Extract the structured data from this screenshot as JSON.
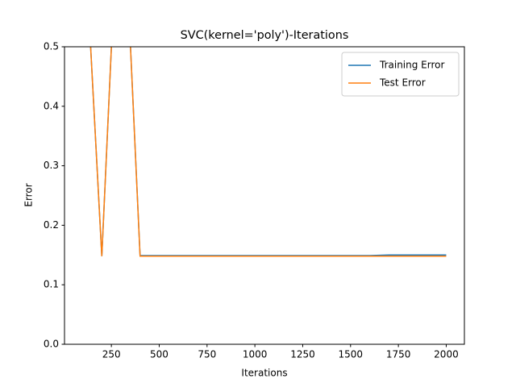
{
  "chart_data": {
    "type": "line",
    "title": "SVC(kernel='poly')-Iterations",
    "x_label": "Iterations",
    "y_label": "Error",
    "x": [
      100,
      200,
      300,
      400,
      500,
      600,
      700,
      800,
      900,
      1000,
      1100,
      1200,
      1300,
      1400,
      1500,
      1600,
      1700,
      1800,
      1900,
      2000
    ],
    "series": [
      {
        "name": "Training Error",
        "color": "#1f77b4",
        "values": [
          0.75,
          0.148,
          0.85,
          0.149,
          0.149,
          0.149,
          0.149,
          0.149,
          0.149,
          0.149,
          0.149,
          0.149,
          0.149,
          0.149,
          0.149,
          0.149,
          0.15,
          0.15,
          0.15,
          0.15
        ]
      },
      {
        "name": "Test Error",
        "color": "#ff7f0e",
        "values": [
          0.75,
          0.148,
          0.85,
          0.148,
          0.148,
          0.148,
          0.148,
          0.148,
          0.148,
          0.148,
          0.148,
          0.148,
          0.148,
          0.148,
          0.148,
          0.148,
          0.148,
          0.148,
          0.148,
          0.148
        ]
      }
    ],
    "xlim": [
      5,
      2095
    ],
    "xticks": [
      250,
      500,
      750,
      1000,
      1250,
      1500,
      1750,
      2000
    ],
    "ylim": [
      0,
      0.5
    ],
    "yticks": [
      {
        "value": 0,
        "label": "0.0"
      },
      0.1,
      0.2,
      0.3,
      0.4,
      0.5
    ],
    "legend": "upper right"
  }
}
